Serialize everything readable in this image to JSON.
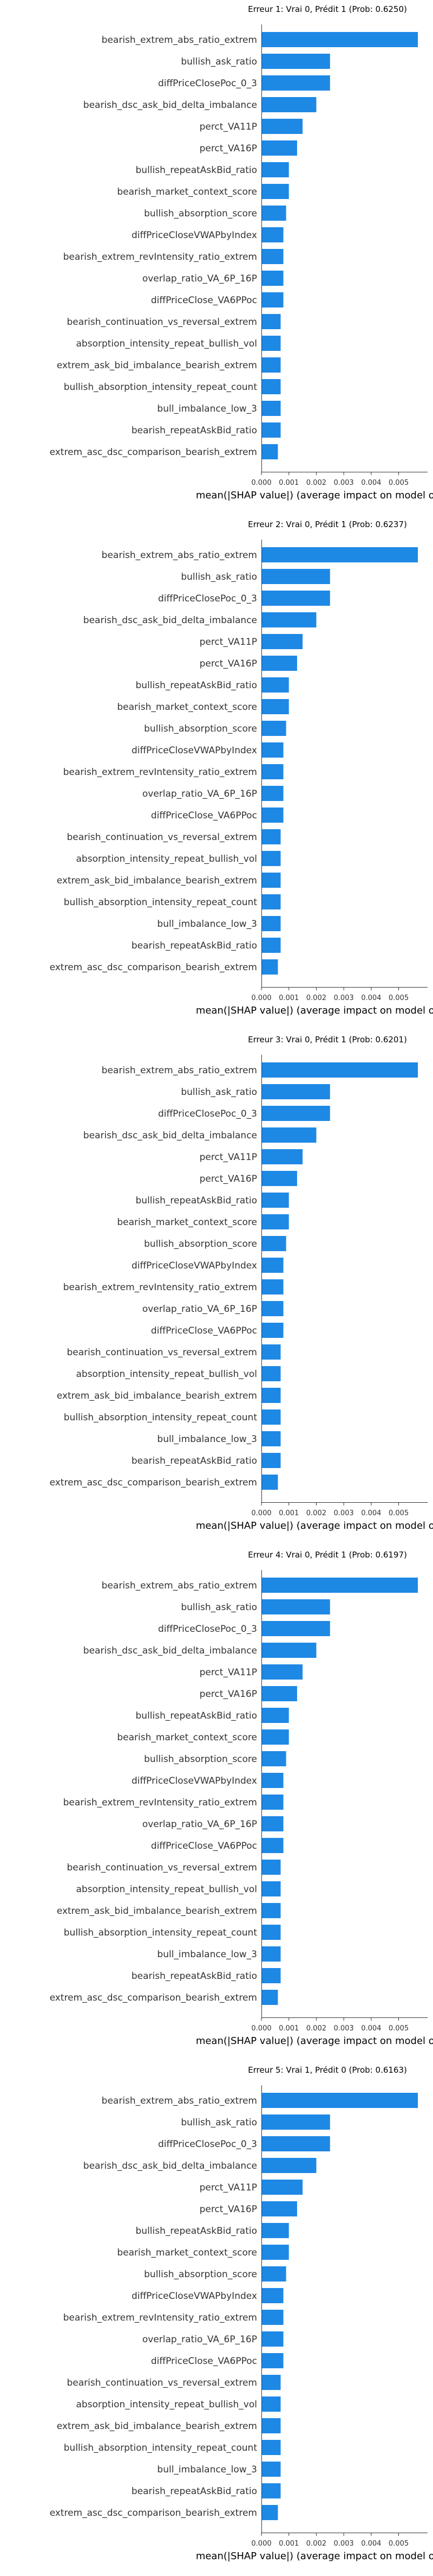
{
  "bar_color": "#1e88e5",
  "axis_color": "#333333",
  "chart_data": [
    {
      "type": "bar",
      "orientation": "horizontal",
      "title": "Erreur 1: Vrai 0, Prédit 1 (Prob: 0.6250)",
      "xlabel": "mean(|SHAP value|) (average impact on model output)",
      "xticks": [
        "0.000",
        "0.001",
        "0.002",
        "0.003",
        "0.004",
        "0.005"
      ],
      "xlim": [
        0,
        0.0057
      ],
      "categories": [
        "bearish_extrem_abs_ratio_extrem",
        "bullish_ask_ratio",
        "diffPriceClosePoc_0_3",
        "bearish_dsc_ask_bid_delta_imbalance",
        "perct_VA11P",
        "perct_VA16P",
        "bullish_repeatAskBid_ratio",
        "bearish_market_context_score",
        "bullish_absorption_score",
        "diffPriceCloseVWAPbyIndex",
        "bearish_extrem_revIntensity_ratio_extrem",
        "overlap_ratio_VA_6P_16P",
        "diffPriceClose_VA6PPoc",
        "bearish_continuation_vs_reversal_extrem",
        "absorption_intensity_repeat_bullish_vol",
        "extrem_ask_bid_imbalance_bearish_extrem",
        "bullish_absorption_intensity_repeat_count",
        "bull_imbalance_low_3",
        "bearish_repeatAskBid_ratio",
        "extrem_asc_dsc_comparison_bearish_extrem"
      ],
      "values": [
        0.0057,
        0.0025,
        0.0025,
        0.002,
        0.0015,
        0.0013,
        0.001,
        0.001,
        0.0009,
        0.0008,
        0.0008,
        0.0008,
        0.0008,
        0.0007,
        0.0007,
        0.0007,
        0.0007,
        0.0007,
        0.0007,
        0.0006
      ]
    },
    {
      "type": "bar",
      "orientation": "horizontal",
      "title": "Erreur 2: Vrai 0, Prédit 1 (Prob: 0.6237)",
      "xlabel": "mean(|SHAP value|) (average impact on model output)",
      "xticks": [
        "0.000",
        "0.001",
        "0.002",
        "0.003",
        "0.004",
        "0.005"
      ],
      "xlim": [
        0,
        0.0057
      ],
      "categories": [
        "bearish_extrem_abs_ratio_extrem",
        "bullish_ask_ratio",
        "diffPriceClosePoc_0_3",
        "bearish_dsc_ask_bid_delta_imbalance",
        "perct_VA11P",
        "perct_VA16P",
        "bullish_repeatAskBid_ratio",
        "bearish_market_context_score",
        "bullish_absorption_score",
        "diffPriceCloseVWAPbyIndex",
        "bearish_extrem_revIntensity_ratio_extrem",
        "overlap_ratio_VA_6P_16P",
        "diffPriceClose_VA6PPoc",
        "bearish_continuation_vs_reversal_extrem",
        "absorption_intensity_repeat_bullish_vol",
        "extrem_ask_bid_imbalance_bearish_extrem",
        "bullish_absorption_intensity_repeat_count",
        "bull_imbalance_low_3",
        "bearish_repeatAskBid_ratio",
        "extrem_asc_dsc_comparison_bearish_extrem"
      ],
      "values": [
        0.0057,
        0.0025,
        0.0025,
        0.002,
        0.0015,
        0.0013,
        0.001,
        0.001,
        0.0009,
        0.0008,
        0.0008,
        0.0008,
        0.0008,
        0.0007,
        0.0007,
        0.0007,
        0.0007,
        0.0007,
        0.0007,
        0.0006
      ]
    },
    {
      "type": "bar",
      "orientation": "horizontal",
      "title": "Erreur 3: Vrai 0, Prédit 1 (Prob: 0.6201)",
      "xlabel": "mean(|SHAP value|) (average impact on model output)",
      "xticks": [
        "0.000",
        "0.001",
        "0.002",
        "0.003",
        "0.004",
        "0.005"
      ],
      "xlim": [
        0,
        0.0057
      ],
      "categories": [
        "bearish_extrem_abs_ratio_extrem",
        "bullish_ask_ratio",
        "diffPriceClosePoc_0_3",
        "bearish_dsc_ask_bid_delta_imbalance",
        "perct_VA11P",
        "perct_VA16P",
        "bullish_repeatAskBid_ratio",
        "bearish_market_context_score",
        "bullish_absorption_score",
        "diffPriceCloseVWAPbyIndex",
        "bearish_extrem_revIntensity_ratio_extrem",
        "overlap_ratio_VA_6P_16P",
        "diffPriceClose_VA6PPoc",
        "bearish_continuation_vs_reversal_extrem",
        "absorption_intensity_repeat_bullish_vol",
        "extrem_ask_bid_imbalance_bearish_extrem",
        "bullish_absorption_intensity_repeat_count",
        "bull_imbalance_low_3",
        "bearish_repeatAskBid_ratio",
        "extrem_asc_dsc_comparison_bearish_extrem"
      ],
      "values": [
        0.0057,
        0.0025,
        0.0025,
        0.002,
        0.0015,
        0.0013,
        0.001,
        0.001,
        0.0009,
        0.0008,
        0.0008,
        0.0008,
        0.0008,
        0.0007,
        0.0007,
        0.0007,
        0.0007,
        0.0007,
        0.0007,
        0.0006
      ]
    },
    {
      "type": "bar",
      "orientation": "horizontal",
      "title": "Erreur 4: Vrai 0, Prédit 1 (Prob: 0.6197)",
      "xlabel": "mean(|SHAP value|) (average impact on model output)",
      "xticks": [
        "0.000",
        "0.001",
        "0.002",
        "0.003",
        "0.004",
        "0.005"
      ],
      "xlim": [
        0,
        0.0057
      ],
      "categories": [
        "bearish_extrem_abs_ratio_extrem",
        "bullish_ask_ratio",
        "diffPriceClosePoc_0_3",
        "bearish_dsc_ask_bid_delta_imbalance",
        "perct_VA11P",
        "perct_VA16P",
        "bullish_repeatAskBid_ratio",
        "bearish_market_context_score",
        "bullish_absorption_score",
        "diffPriceCloseVWAPbyIndex",
        "bearish_extrem_revIntensity_ratio_extrem",
        "overlap_ratio_VA_6P_16P",
        "diffPriceClose_VA6PPoc",
        "bearish_continuation_vs_reversal_extrem",
        "absorption_intensity_repeat_bullish_vol",
        "extrem_ask_bid_imbalance_bearish_extrem",
        "bullish_absorption_intensity_repeat_count",
        "bull_imbalance_low_3",
        "bearish_repeatAskBid_ratio",
        "extrem_asc_dsc_comparison_bearish_extrem"
      ],
      "values": [
        0.0057,
        0.0025,
        0.0025,
        0.002,
        0.0015,
        0.0013,
        0.001,
        0.001,
        0.0009,
        0.0008,
        0.0008,
        0.0008,
        0.0008,
        0.0007,
        0.0007,
        0.0007,
        0.0007,
        0.0007,
        0.0007,
        0.0006
      ]
    },
    {
      "type": "bar",
      "orientation": "horizontal",
      "title": "Erreur 5: Vrai 1, Prédit 0 (Prob: 0.6163)",
      "xlabel": "mean(|SHAP value|) (average impact on model output)",
      "xticks": [
        "0.000",
        "0.001",
        "0.002",
        "0.003",
        "0.004",
        "0.005"
      ],
      "xlim": [
        0,
        0.0057
      ],
      "categories": [
        "bearish_extrem_abs_ratio_extrem",
        "bullish_ask_ratio",
        "diffPriceClosePoc_0_3",
        "bearish_dsc_ask_bid_delta_imbalance",
        "perct_VA11P",
        "perct_VA16P",
        "bullish_repeatAskBid_ratio",
        "bearish_market_context_score",
        "bullish_absorption_score",
        "diffPriceCloseVWAPbyIndex",
        "bearish_extrem_revIntensity_ratio_extrem",
        "overlap_ratio_VA_6P_16P",
        "diffPriceClose_VA6PPoc",
        "bearish_continuation_vs_reversal_extrem",
        "absorption_intensity_repeat_bullish_vol",
        "extrem_ask_bid_imbalance_bearish_extrem",
        "bullish_absorption_intensity_repeat_count",
        "bull_imbalance_low_3",
        "bearish_repeatAskBid_ratio",
        "extrem_asc_dsc_comparison_bearish_extrem"
      ],
      "values": [
        0.0057,
        0.0025,
        0.0025,
        0.002,
        0.0015,
        0.0013,
        0.001,
        0.001,
        0.0009,
        0.0008,
        0.0008,
        0.0008,
        0.0008,
        0.0007,
        0.0007,
        0.0007,
        0.0007,
        0.0007,
        0.0007,
        0.0006
      ]
    }
  ]
}
